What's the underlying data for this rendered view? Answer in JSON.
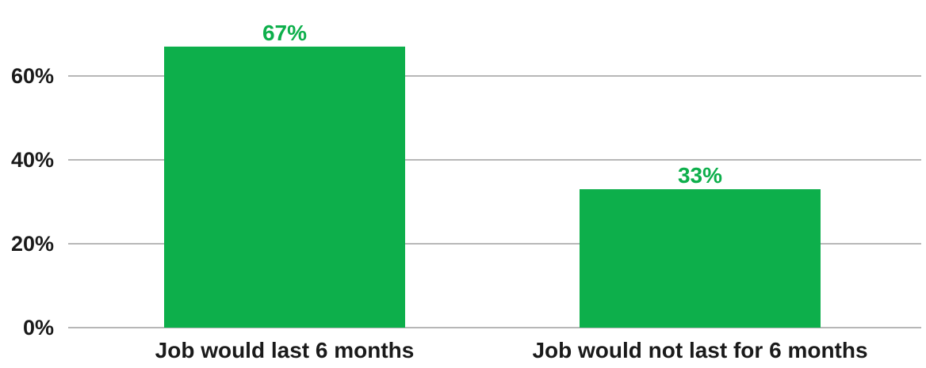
{
  "chart_data": {
    "type": "bar",
    "categories": [
      "Job would last 6 months",
      "Job would not last for 6 months"
    ],
    "values": [
      67,
      33
    ],
    "data_labels": [
      "67%",
      "33%"
    ],
    "title": "",
    "xlabel": "",
    "ylabel": "",
    "ylim": [
      0,
      70
    ],
    "yticks": [
      0,
      20,
      40,
      60
    ],
    "ytick_labels": [
      "0%",
      "20%",
      "40%",
      "60%"
    ],
    "grid": true,
    "legend": "none",
    "bar_color": "#0daf4b",
    "label_color": "#0daf4b"
  }
}
